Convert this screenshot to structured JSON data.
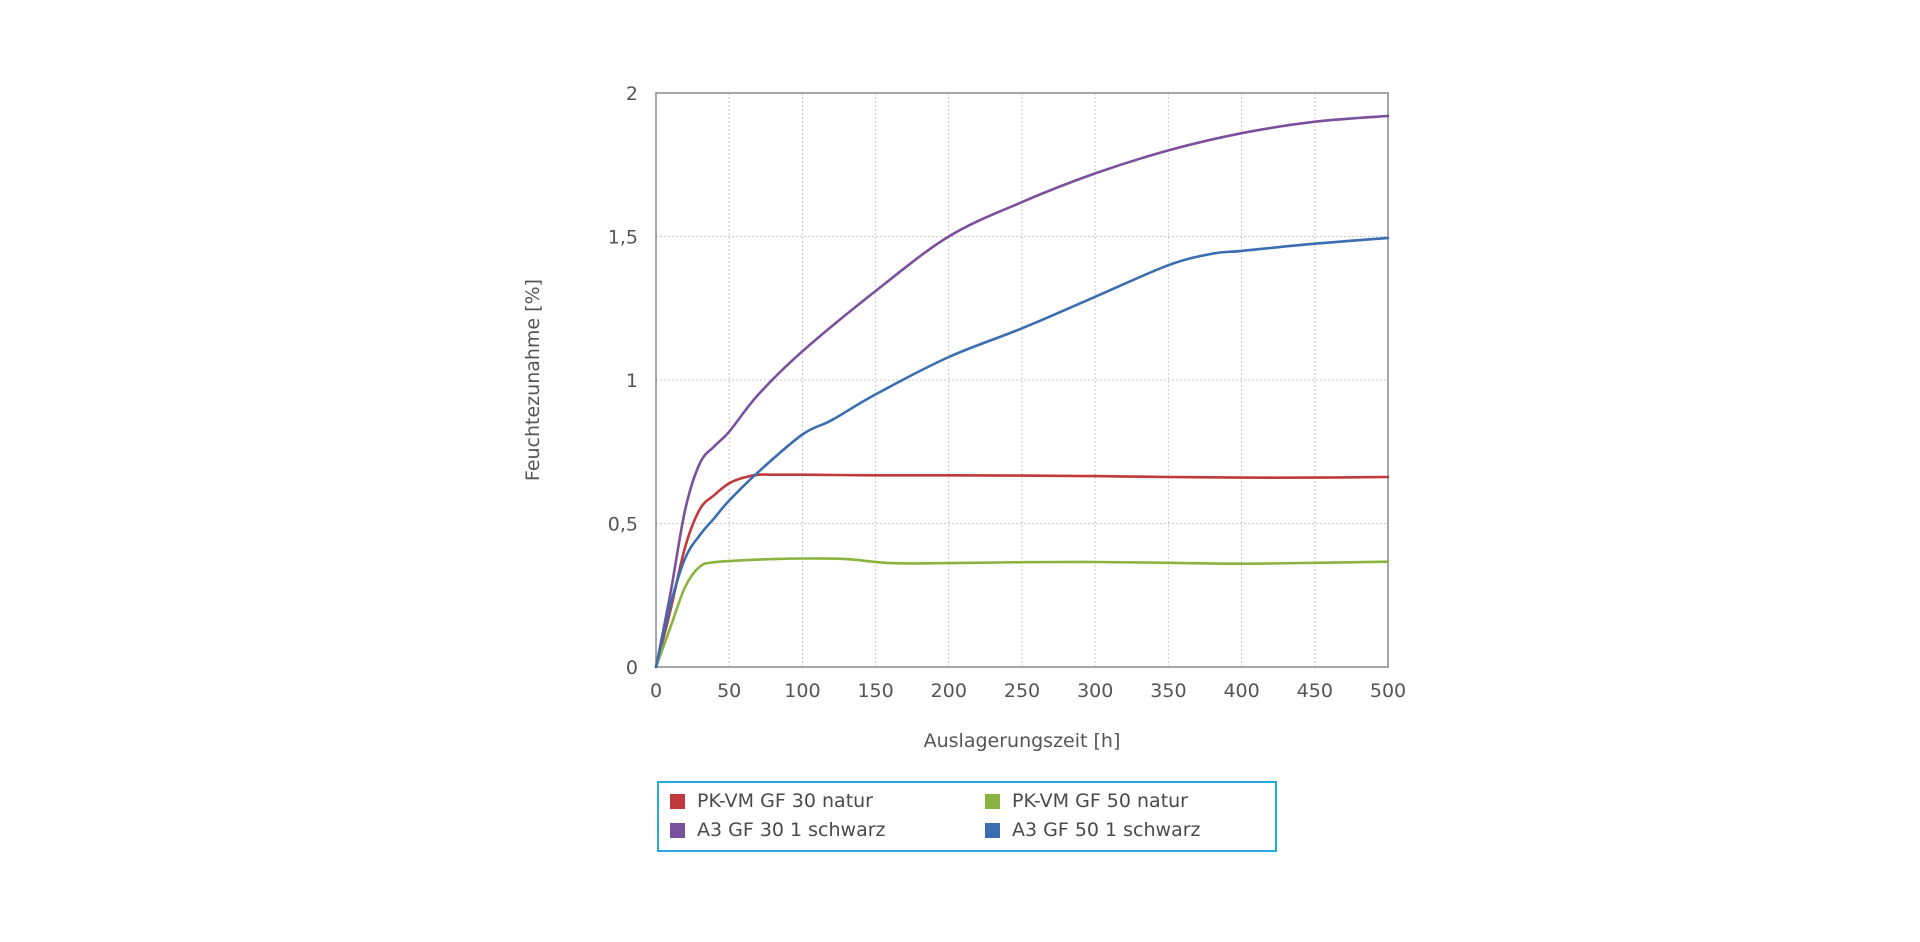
{
  "chart_data": {
    "type": "line",
    "title": "",
    "xlabel": "Auslagerungszeit [h]",
    "ylabel": "Feuchtezunahme [%]",
    "xlim": [
      0,
      500
    ],
    "ylim": [
      0,
      2
    ],
    "xticks": [
      "0",
      "50",
      "100",
      "150",
      "200",
      "250",
      "300",
      "350",
      "400",
      "450",
      "500"
    ],
    "xtick_values": [
      0,
      50,
      100,
      150,
      200,
      250,
      300,
      350,
      400,
      450,
      500
    ],
    "yticks": [
      "0",
      "0,5",
      "1",
      "1,5",
      "2"
    ],
    "ytick_values": [
      0,
      0.5,
      1,
      1.5,
      2
    ],
    "grid": true,
    "legend_position": "bottom",
    "series": [
      {
        "name": "PK-VM GF 30 natur",
        "color": "#c0393b",
        "x": [
          0,
          10,
          20,
          30,
          40,
          50,
          60,
          70,
          80,
          100,
          150,
          200,
          250,
          300,
          350,
          400,
          450,
          500
        ],
        "y": [
          0,
          0.2,
          0.42,
          0.55,
          0.6,
          0.64,
          0.66,
          0.67,
          0.67,
          0.67,
          0.668,
          0.668,
          0.667,
          0.665,
          0.662,
          0.66,
          0.66,
          0.662
        ]
      },
      {
        "name": "PK-VM GF 50 natur",
        "color": "#8ab33f",
        "x": [
          0,
          10,
          20,
          30,
          40,
          60,
          80,
          100,
          130,
          160,
          200,
          250,
          300,
          350,
          400,
          450,
          500
        ],
        "y": [
          0,
          0.14,
          0.28,
          0.35,
          0.365,
          0.372,
          0.376,
          0.378,
          0.376,
          0.362,
          0.362,
          0.365,
          0.366,
          0.363,
          0.36,
          0.363,
          0.367
        ]
      },
      {
        "name": "A3 GF 30 1 schwarz",
        "color": "#7a509c",
        "x": [
          0,
          10,
          20,
          30,
          40,
          50,
          70,
          100,
          150,
          200,
          250,
          300,
          350,
          400,
          450,
          500
        ],
        "y": [
          0,
          0.26,
          0.55,
          0.71,
          0.77,
          0.82,
          0.95,
          1.1,
          1.31,
          1.5,
          1.62,
          1.72,
          1.8,
          1.86,
          1.9,
          1.92
        ]
      },
      {
        "name": "A3 GF 50 1 schwarz",
        "color": "#3b6eb0",
        "x": [
          0,
          10,
          20,
          30,
          40,
          50,
          70,
          100,
          120,
          150,
          200,
          250,
          300,
          350,
          380,
          400,
          450,
          500
        ],
        "y": [
          0,
          0.22,
          0.38,
          0.46,
          0.52,
          0.58,
          0.68,
          0.81,
          0.86,
          0.95,
          1.08,
          1.18,
          1.29,
          1.4,
          1.44,
          1.45,
          1.475,
          1.495
        ]
      }
    ]
  }
}
